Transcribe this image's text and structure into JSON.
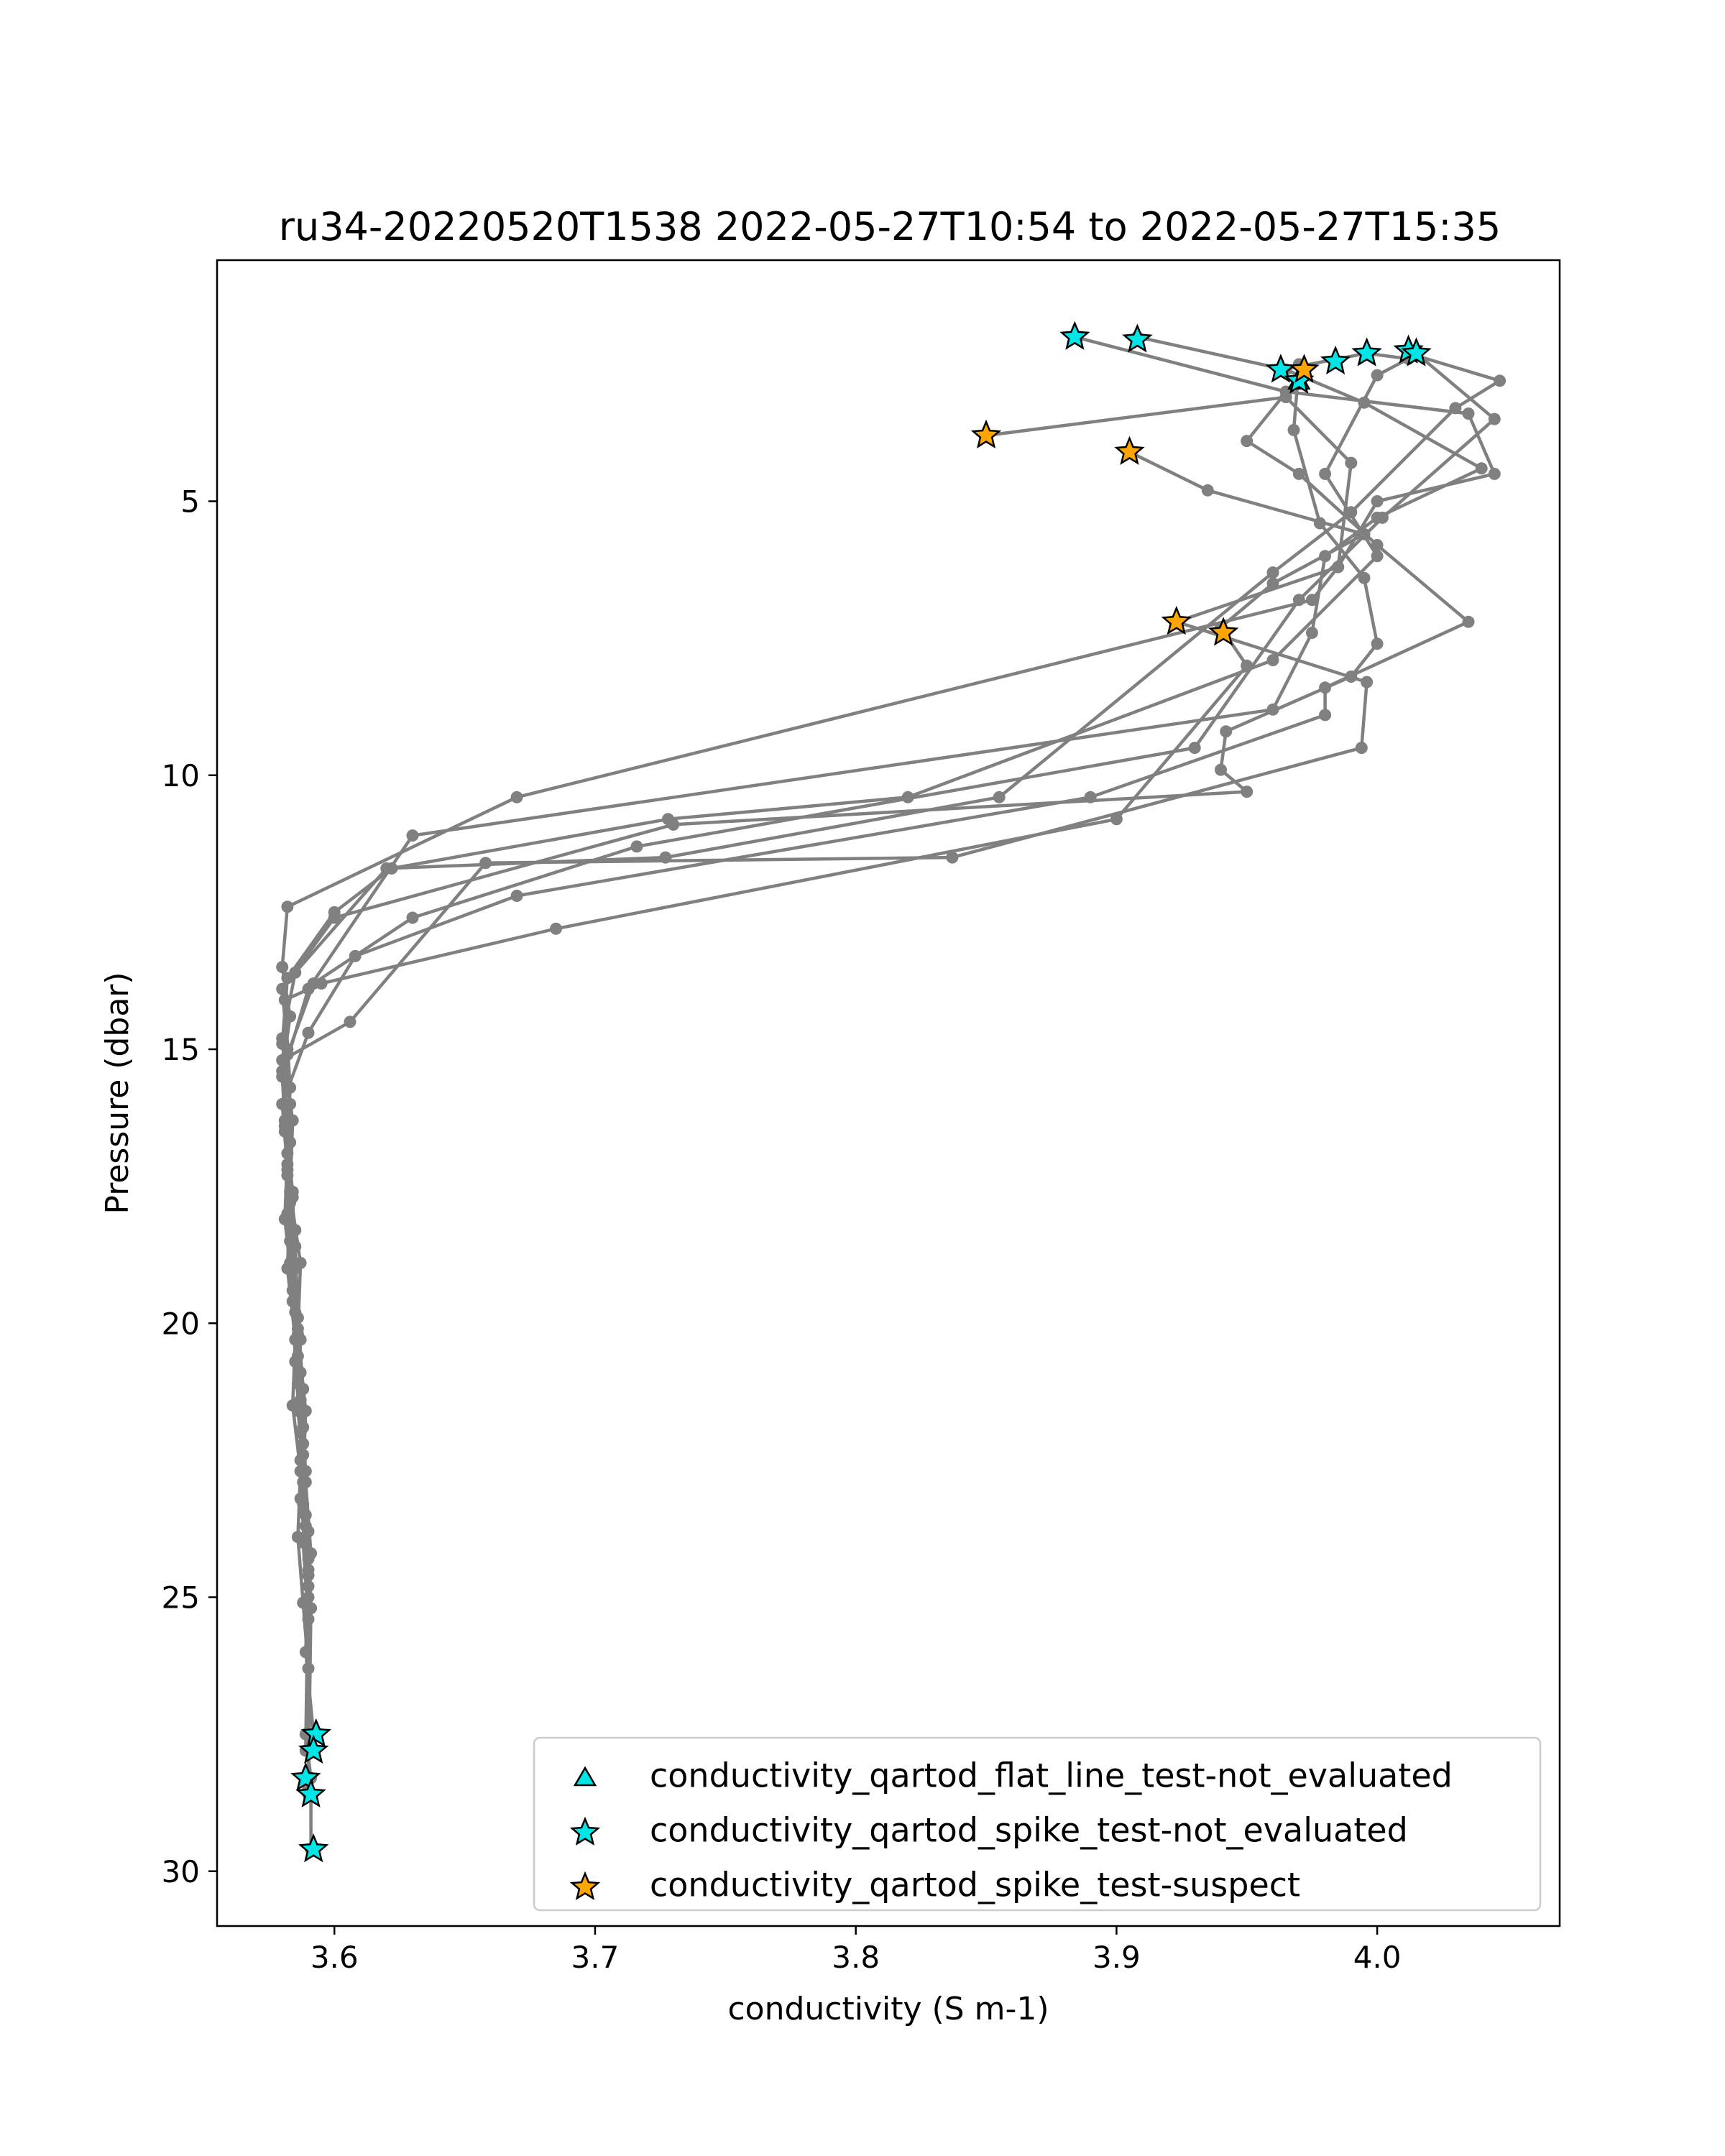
{
  "chart_data": {
    "type": "line",
    "title": "ru34-20220520T1538 2022-05-27T10:54 to 2022-05-27T15:35",
    "xlabel": "conductivity (S m-1)",
    "ylabel": "Pressure (dbar)",
    "xlim": [
      3.555,
      4.07
    ],
    "ylim": [
      31.0,
      0.6
    ],
    "y_inverted": true,
    "xticks": [
      3.6,
      3.7,
      3.8,
      3.9,
      4.0
    ],
    "xtick_labels": [
      "3.6",
      "3.7",
      "3.8",
      "3.9",
      "4.0"
    ],
    "yticks": [
      5,
      10,
      15,
      20,
      25,
      30
    ],
    "ytick_labels": [
      "5",
      "10",
      "15",
      "20",
      "25",
      "30"
    ],
    "grid": false,
    "line_color": "#808080",
    "series": [
      {
        "x": [
          3.884,
          3.965,
          4.035,
          4.045,
          4.0,
          3.985,
          3.975,
          3.67,
          3.582,
          3.58,
          3.583,
          3.58,
          3.581,
          3.583,
          3.582,
          3.585,
          3.584,
          3.587,
          3.586,
          3.588,
          3.59,
          3.589,
          3.591,
          3.591
        ],
        "y": [
          2.0,
          3.0,
          3.4,
          4.5,
          5.0,
          6.2,
          6.8,
          10.4,
          12.4,
          13.5,
          14.4,
          15.4,
          16.5,
          17.8,
          19.0,
          20.3,
          21.5,
          22.7,
          23.9,
          25.1,
          26.3,
          27.5,
          28.3,
          29.6
        ]
      },
      {
        "x": [
          3.908,
          3.965,
          3.995,
          4.04,
          4.0,
          3.98,
          3.975,
          3.96,
          3.63,
          3.59,
          3.58,
          3.582,
          3.581,
          3.584,
          3.585,
          3.587,
          3.588,
          3.59,
          3.589,
          3.592
        ],
        "y": [
          2.0,
          2.6,
          3.2,
          4.4,
          5.3,
          6.0,
          7.4,
          8.8,
          11.1,
          13.9,
          15.5,
          16.9,
          18.1,
          19.4,
          20.7,
          22.0,
          23.3,
          24.6,
          26.0,
          27.5
        ]
      },
      {
        "x": [
          3.963,
          3.996,
          4.012,
          4.0,
          3.98,
          4.0,
          3.96,
          3.82,
          3.728,
          3.622,
          3.6,
          3.582,
          3.58,
          3.584,
          3.583,
          3.587,
          3.586,
          3.589,
          3.588,
          3.59,
          3.589
        ],
        "y": [
          2.6,
          2.3,
          2.4,
          2.7,
          4.5,
          6.0,
          7.9,
          10.4,
          10.8,
          11.7,
          12.5,
          13.7,
          14.9,
          16.3,
          17.6,
          18.9,
          20.2,
          21.6,
          22.9,
          24.3,
          27.8
        ]
      },
      {
        "x": [
          4.012,
          4.047,
          4.03,
          3.99,
          3.96,
          3.855,
          3.727,
          3.62,
          3.585,
          3.58,
          3.583,
          3.582,
          3.585,
          3.586,
          3.588,
          3.587,
          3.59,
          3.591,
          3.59
        ],
        "y": [
          2.3,
          2.8,
          3.3,
          5.2,
          6.3,
          10.4,
          11.5,
          11.7,
          13.6,
          14.8,
          16.0,
          17.3,
          18.6,
          19.9,
          21.2,
          22.5,
          23.8,
          25.2,
          28.6
        ]
      },
      {
        "x": [
          4.015,
          4.045,
          4.002,
          3.97,
          3.93,
          3.716,
          3.63,
          3.592,
          3.582,
          3.581,
          3.584,
          3.583,
          3.586,
          3.587,
          3.589,
          3.588,
          3.59,
          3.59
        ],
        "y": [
          2.3,
          3.5,
          5.3,
          6.8,
          9.5,
          11.3,
          12.6,
          13.8,
          15.1,
          16.3,
          17.6,
          18.9,
          20.1,
          21.4,
          22.7,
          24.0,
          25.4,
          28.5
        ]
      },
      {
        "x": [
          3.97,
          3.968,
          3.978,
          3.995,
          4.0,
          3.99,
          3.942,
          3.94,
          3.95,
          3.73,
          3.6,
          3.58,
          3.582,
          3.581,
          3.584,
          3.585,
          3.587,
          3.586,
          3.589,
          3.591
        ],
        "y": [
          2.5,
          3.7,
          5.4,
          6.4,
          7.6,
          8.2,
          9.2,
          9.9,
          10.3,
          10.9,
          12.6,
          13.9,
          15.0,
          16.4,
          17.7,
          19.0,
          20.3,
          21.6,
          22.9,
          24.2
        ]
      },
      {
        "x": [
          3.972,
          3.95,
          3.97,
          4.0,
          4.035,
          3.98,
          3.98,
          3.89,
          3.67,
          3.608,
          3.59,
          3.58,
          3.582,
          3.583,
          3.585,
          3.586,
          3.588,
          3.589,
          3.59
        ],
        "y": [
          2.6,
          3.9,
          4.5,
          5.8,
          7.2,
          8.4,
          8.9,
          10.4,
          12.2,
          13.3,
          14.7,
          16.0,
          17.2,
          18.5,
          19.8,
          21.1,
          22.4,
          23.7,
          25.0
        ]
      },
      {
        "x": [
          3.85,
          3.965,
          3.99,
          3.985,
          3.923,
          3.996,
          3.994,
          3.837,
          3.658,
          3.606,
          3.58,
          3.583,
          3.582,
          3.585,
          3.586,
          3.588,
          3.587,
          3.59
        ],
        "y": [
          3.8,
          3.1,
          4.3,
          6.2,
          7.2,
          8.3,
          9.5,
          11.5,
          11.6,
          14.5,
          15.2,
          16.7,
          18.0,
          19.3,
          20.6,
          21.9,
          23.2,
          24.5
        ]
      },
      {
        "x": [
          3.905,
          3.935,
          3.995,
          3.96,
          3.94,
          3.95,
          3.9,
          3.685,
          3.595,
          3.581,
          3.583,
          3.582,
          3.585,
          3.584,
          3.587,
          3.588,
          3.589,
          3.59
        ],
        "y": [
          4.1,
          4.8,
          5.6,
          6.5,
          7.3,
          8.0,
          10.8,
          12.8,
          13.8,
          14.1,
          15.7,
          17.1,
          18.3,
          19.6,
          20.9,
          22.2,
          23.5,
          24.8
        ]
      }
    ],
    "legend": {
      "placement": "lower right",
      "entries": [
        {
          "label": "conductivity_qartod_flat_line_test-not_evaluated",
          "marker": "triangle",
          "color": "#00e5e5"
        },
        {
          "label": "conductivity_qartod_spike_test-not_evaluated",
          "marker": "star",
          "color": "#00e5e5"
        },
        {
          "label": "conductivity_qartod_spike_test-suspect",
          "marker": "star",
          "color": "#ffa500"
        }
      ]
    },
    "flags": {
      "spike_test_not_evaluated": {
        "x": [
          3.884,
          3.908,
          3.996,
          4.012,
          4.015,
          3.984,
          3.963,
          3.97,
          3.593,
          3.592,
          3.589,
          3.591,
          3.592
        ],
        "y": [
          2.0,
          2.05,
          2.3,
          2.25,
          2.3,
          2.45,
          2.6,
          2.8,
          27.5,
          27.8,
          28.3,
          28.6,
          29.6
        ]
      },
      "spike_test_suspect": {
        "x": [
          3.85,
          3.905,
          3.972,
          3.923,
          3.941
        ],
        "y": [
          3.8,
          4.1,
          2.6,
          7.2,
          7.4
        ]
      },
      "flat_line_test_not_evaluated": {
        "x": [
          3.97
        ],
        "y": [
          2.8
        ]
      }
    }
  }
}
